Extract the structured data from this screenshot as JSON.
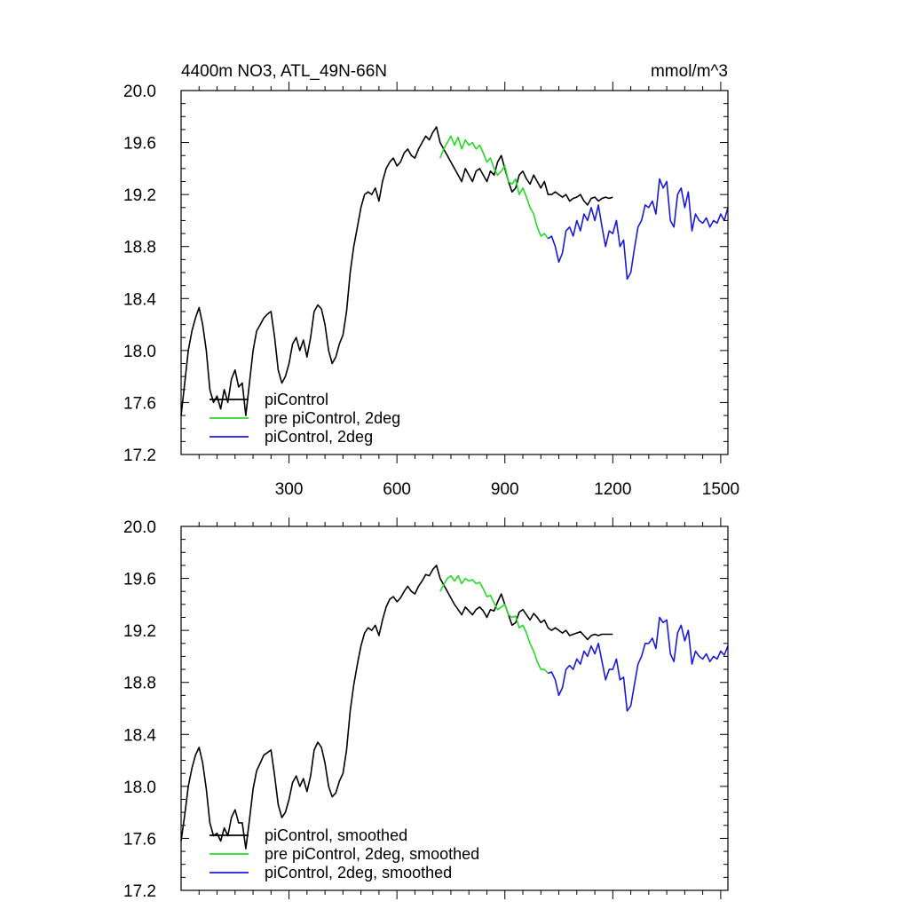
{
  "chart_data": [
    {
      "type": "line",
      "title": "4400m NO3, ATL_49N-66N",
      "units": "mmol/m^3",
      "xlabel": "",
      "ylabel": "",
      "xlim": [
        0,
        1520
      ],
      "ylim": [
        17.2,
        20.0
      ],
      "xticks": [
        300,
        600,
        900,
        1200,
        1500
      ],
      "xtick_labels": [
        "300",
        "600",
        "900",
        "1200",
        "1500"
      ],
      "show_xtick_labels": true,
      "yticks": [
        17.2,
        17.6,
        18.0,
        18.4,
        18.8,
        19.2,
        19.6,
        20.0
      ],
      "ytick_labels": [
        "17.2",
        "17.6",
        "18.0",
        "18.4",
        "18.8",
        "19.2",
        "19.6",
        "20.0"
      ],
      "legend_position": "bottom-left",
      "series": [
        {
          "name": "piControl",
          "color": "#000000",
          "x": [
            0,
            10,
            20,
            30,
            40,
            50,
            60,
            70,
            80,
            90,
            100,
            110,
            120,
            130,
            140,
            150,
            160,
            170,
            180,
            190,
            200,
            210,
            220,
            230,
            240,
            250,
            260,
            270,
            280,
            290,
            300,
            310,
            320,
            330,
            340,
            350,
            360,
            370,
            380,
            390,
            400,
            410,
            420,
            430,
            440,
            450,
            460,
            470,
            480,
            490,
            500,
            510,
            520,
            530,
            540,
            550,
            560,
            570,
            580,
            590,
            600,
            610,
            620,
            630,
            640,
            650,
            660,
            670,
            680,
            690,
            700,
            710,
            720,
            730,
            740,
            750,
            760,
            770,
            780,
            790,
            800,
            810,
            820,
            830,
            840,
            850,
            860,
            870,
            880,
            890,
            900,
            910,
            920,
            930,
            940,
            950,
            960,
            970,
            980,
            990,
            1000,
            1010,
            1020,
            1030,
            1040,
            1050,
            1060,
            1070,
            1080,
            1090,
            1100,
            1110,
            1120,
            1130,
            1140,
            1150,
            1160,
            1170,
            1180,
            1190,
            1200
          ],
          "y": [
            17.5,
            17.75,
            18.0,
            18.15,
            18.25,
            18.33,
            18.2,
            18.0,
            17.7,
            17.6,
            17.65,
            17.55,
            17.7,
            17.6,
            17.78,
            17.85,
            17.72,
            17.75,
            17.5,
            17.75,
            18.0,
            18.15,
            18.2,
            18.25,
            18.28,
            18.3,
            18.1,
            17.85,
            17.75,
            17.8,
            17.9,
            18.05,
            18.1,
            18.0,
            18.08,
            17.95,
            18.1,
            18.3,
            18.35,
            18.32,
            18.2,
            18.0,
            17.9,
            17.95,
            18.05,
            18.12,
            18.3,
            18.6,
            18.8,
            18.95,
            19.1,
            19.2,
            19.22,
            19.2,
            19.25,
            19.15,
            19.3,
            19.4,
            19.45,
            19.48,
            19.42,
            19.45,
            19.52,
            19.55,
            19.5,
            19.48,
            19.55,
            19.6,
            19.65,
            19.62,
            19.68,
            19.72,
            19.6,
            19.55,
            19.5,
            19.45,
            19.4,
            19.35,
            19.3,
            19.4,
            19.35,
            19.3,
            19.38,
            19.4,
            19.35,
            19.3,
            19.38,
            19.35,
            19.45,
            19.5,
            19.4,
            19.3,
            19.22,
            19.25,
            19.35,
            19.38,
            19.32,
            19.28,
            19.35,
            19.3,
            19.25,
            19.3,
            19.2,
            19.2,
            19.22,
            19.2,
            19.18,
            19.2,
            19.15,
            19.17,
            19.18,
            19.2,
            19.15,
            19.12,
            19.17,
            19.18,
            19.15,
            19.17,
            19.18,
            19.17,
            19.18
          ]
        },
        {
          "name": "pre piControl, 2deg",
          "color": "#22dd22",
          "x": [
            720,
            730,
            740,
            750,
            760,
            770,
            780,
            790,
            800,
            810,
            820,
            830,
            840,
            850,
            860,
            870,
            880,
            890,
            900,
            910,
            920,
            930,
            940,
            950,
            960,
            970,
            980,
            990,
            1000,
            1010,
            1020
          ],
          "y": [
            19.48,
            19.55,
            19.6,
            19.65,
            19.58,
            19.64,
            19.55,
            19.62,
            19.58,
            19.6,
            19.55,
            19.58,
            19.52,
            19.45,
            19.48,
            19.4,
            19.35,
            19.38,
            19.42,
            19.3,
            19.28,
            19.32,
            19.2,
            19.25,
            19.18,
            19.1,
            19.05,
            18.95,
            18.88,
            18.9,
            18.86
          ]
        },
        {
          "name": "piControl, 2deg",
          "color": "#1a1adc",
          "x": [
            1020,
            1030,
            1040,
            1050,
            1060,
            1070,
            1080,
            1090,
            1100,
            1110,
            1120,
            1130,
            1140,
            1150,
            1160,
            1170,
            1180,
            1190,
            1200,
            1210,
            1220,
            1230,
            1240,
            1250,
            1260,
            1270,
            1280,
            1290,
            1300,
            1310,
            1320,
            1330,
            1340,
            1350,
            1360,
            1370,
            1380,
            1390,
            1400,
            1410,
            1420,
            1430,
            1440,
            1450,
            1460,
            1470,
            1480,
            1490,
            1500,
            1510,
            1520
          ],
          "y": [
            18.86,
            18.88,
            18.8,
            18.68,
            18.75,
            18.92,
            18.95,
            18.88,
            19.0,
            18.92,
            19.05,
            19.0,
            19.1,
            19.0,
            19.12,
            18.95,
            18.8,
            18.92,
            18.9,
            19.0,
            18.8,
            18.85,
            18.55,
            18.6,
            18.78,
            18.95,
            19.0,
            19.12,
            19.1,
            19.15,
            19.05,
            19.32,
            19.25,
            19.3,
            19.0,
            18.95,
            19.2,
            19.25,
            19.1,
            19.22,
            18.92,
            19.05,
            19.0,
            18.98,
            19.02,
            18.95,
            19.0,
            18.98,
            19.05,
            19.0,
            19.1
          ]
        }
      ]
    },
    {
      "type": "line",
      "title": "",
      "units": "",
      "xlabel": "",
      "ylabel": "",
      "xlim": [
        0,
        1520
      ],
      "ylim": [
        17.2,
        20.0
      ],
      "xticks": [
        300,
        600,
        900,
        1200,
        1500
      ],
      "show_xtick_labels": false,
      "yticks": [
        17.2,
        17.6,
        18.0,
        18.4,
        18.8,
        19.2,
        19.6,
        20.0
      ],
      "ytick_labels": [
        "17.2",
        "17.6",
        "18.0",
        "18.4",
        "18.8",
        "19.2",
        "19.6",
        "20.0"
      ],
      "legend_position": "bottom-left",
      "series": [
        {
          "name": "piControl, smoothed",
          "color": "#000000",
          "x": [
            0,
            10,
            20,
            30,
            40,
            50,
            60,
            70,
            80,
            90,
            100,
            110,
            120,
            130,
            140,
            150,
            160,
            170,
            180,
            190,
            200,
            210,
            220,
            230,
            240,
            250,
            260,
            270,
            280,
            290,
            300,
            310,
            320,
            330,
            340,
            350,
            360,
            370,
            380,
            390,
            400,
            410,
            420,
            430,
            440,
            450,
            460,
            470,
            480,
            490,
            500,
            510,
            520,
            530,
            540,
            550,
            560,
            570,
            580,
            590,
            600,
            610,
            620,
            630,
            640,
            650,
            660,
            670,
            680,
            690,
            700,
            710,
            720,
            730,
            740,
            750,
            760,
            770,
            780,
            790,
            800,
            810,
            820,
            830,
            840,
            850,
            860,
            870,
            880,
            890,
            900,
            910,
            920,
            930,
            940,
            950,
            960,
            970,
            980,
            990,
            1000,
            1010,
            1020,
            1030,
            1040,
            1050,
            1060,
            1070,
            1080,
            1090,
            1100,
            1110,
            1120,
            1130,
            1140,
            1150,
            1160,
            1170,
            1180,
            1190,
            1200
          ],
          "y": [
            17.58,
            17.78,
            18.0,
            18.14,
            18.24,
            18.3,
            18.18,
            17.98,
            17.72,
            17.62,
            17.64,
            17.58,
            17.68,
            17.62,
            17.76,
            17.82,
            17.72,
            17.72,
            17.52,
            17.74,
            17.98,
            18.12,
            18.18,
            18.24,
            18.26,
            18.28,
            18.08,
            17.86,
            17.76,
            17.8,
            17.9,
            18.03,
            18.08,
            18.0,
            18.06,
            17.96,
            18.08,
            18.28,
            18.34,
            18.3,
            18.18,
            18.0,
            17.92,
            17.95,
            18.04,
            18.1,
            18.28,
            18.58,
            18.78,
            18.94,
            19.08,
            19.18,
            19.22,
            19.2,
            19.24,
            19.16,
            19.28,
            19.38,
            19.44,
            19.46,
            19.42,
            19.45,
            19.5,
            19.54,
            19.5,
            19.48,
            19.54,
            19.58,
            19.63,
            19.62,
            19.67,
            19.7,
            19.6,
            19.55,
            19.5,
            19.45,
            19.4,
            19.36,
            19.32,
            19.38,
            19.35,
            19.32,
            19.36,
            19.38,
            19.35,
            19.3,
            19.36,
            19.35,
            19.42,
            19.48,
            19.4,
            19.32,
            19.24,
            19.26,
            19.34,
            19.36,
            19.32,
            19.28,
            19.33,
            19.3,
            19.26,
            19.28,
            19.22,
            19.2,
            19.22,
            19.2,
            19.18,
            19.2,
            19.16,
            19.17,
            19.18,
            19.19,
            19.16,
            19.13,
            19.16,
            19.17,
            19.16,
            19.17,
            19.17,
            19.17,
            19.17
          ]
        },
        {
          "name": "pre piControl, 2deg, smoothed",
          "color": "#22dd22",
          "x": [
            720,
            730,
            740,
            750,
            760,
            770,
            780,
            790,
            800,
            810,
            820,
            830,
            840,
            850,
            860,
            870,
            880,
            890,
            900,
            910,
            920,
            930,
            940,
            950,
            960,
            970,
            980,
            990,
            1000,
            1010,
            1020
          ],
          "y": [
            19.5,
            19.55,
            19.6,
            19.62,
            19.58,
            19.62,
            19.56,
            19.6,
            19.58,
            19.59,
            19.56,
            19.57,
            19.52,
            19.46,
            19.47,
            19.41,
            19.36,
            19.38,
            19.4,
            19.32,
            19.3,
            19.31,
            19.22,
            19.24,
            19.18,
            19.1,
            19.04,
            18.96,
            18.9,
            18.9,
            18.87
          ]
        },
        {
          "name": "piControl, 2deg, smoothed",
          "color": "#1a1adc",
          "x": [
            1020,
            1030,
            1040,
            1050,
            1060,
            1070,
            1080,
            1090,
            1100,
            1110,
            1120,
            1130,
            1140,
            1150,
            1160,
            1170,
            1180,
            1190,
            1200,
            1210,
            1220,
            1230,
            1240,
            1250,
            1260,
            1270,
            1280,
            1290,
            1300,
            1310,
            1320,
            1330,
            1340,
            1350,
            1360,
            1370,
            1380,
            1390,
            1400,
            1410,
            1420,
            1430,
            1440,
            1450,
            1460,
            1470,
            1480,
            1490,
            1500,
            1510,
            1520
          ],
          "y": [
            18.87,
            18.88,
            18.82,
            18.7,
            18.76,
            18.9,
            18.93,
            18.9,
            18.98,
            18.94,
            19.04,
            19.0,
            19.08,
            19.02,
            19.1,
            18.96,
            18.82,
            18.9,
            18.9,
            18.98,
            18.82,
            18.84,
            18.58,
            18.62,
            18.78,
            18.94,
            19.0,
            19.1,
            19.1,
            19.14,
            19.06,
            19.3,
            19.26,
            19.28,
            19.02,
            18.96,
            19.18,
            19.24,
            19.12,
            19.2,
            18.94,
            19.04,
            19.0,
            18.98,
            19.02,
            18.96,
            19.0,
            18.98,
            19.04,
            19.01,
            19.08
          ]
        }
      ]
    }
  ]
}
